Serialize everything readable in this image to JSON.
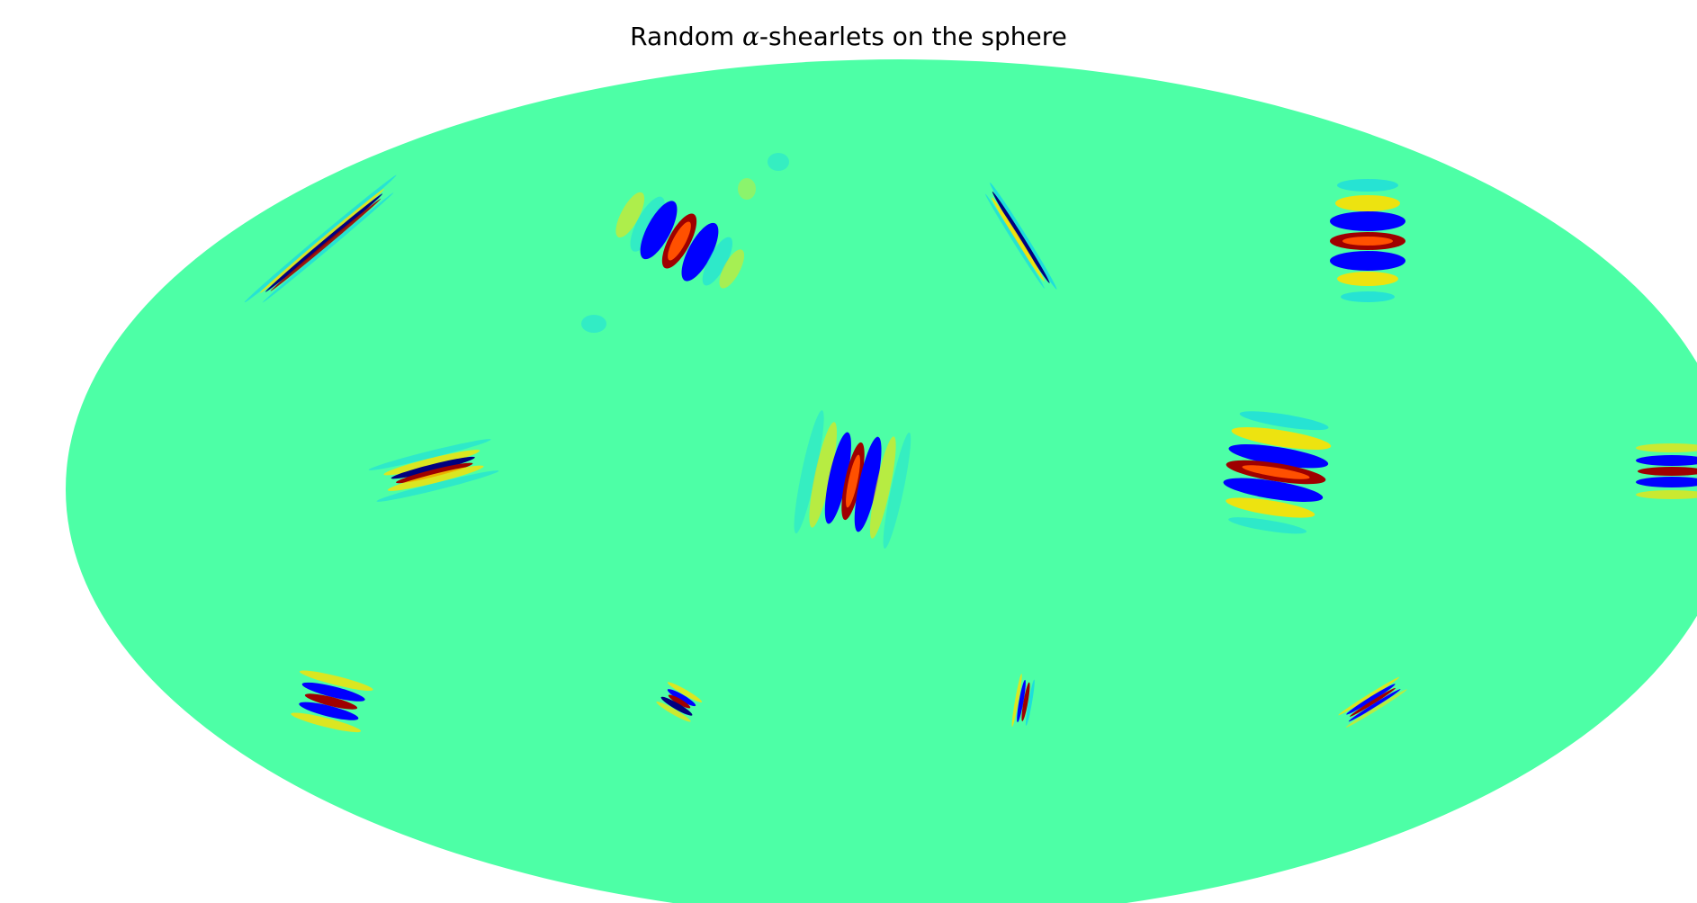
{
  "figure": {
    "title_prefix": "Random ",
    "title_symbol": "α",
    "title_suffix": "-shearlets on the sphere"
  },
  "map": {
    "projection": "mollweide",
    "background_color": "#4dffa6",
    "colormap": "jet",
    "colors": {
      "negative_strong": "#00007f",
      "negative": "#0000ff",
      "negative_light": "#00c8ff",
      "positive_light": "#ffe000",
      "positive": "#ff5000",
      "positive_strong": "#9f0000"
    }
  }
}
